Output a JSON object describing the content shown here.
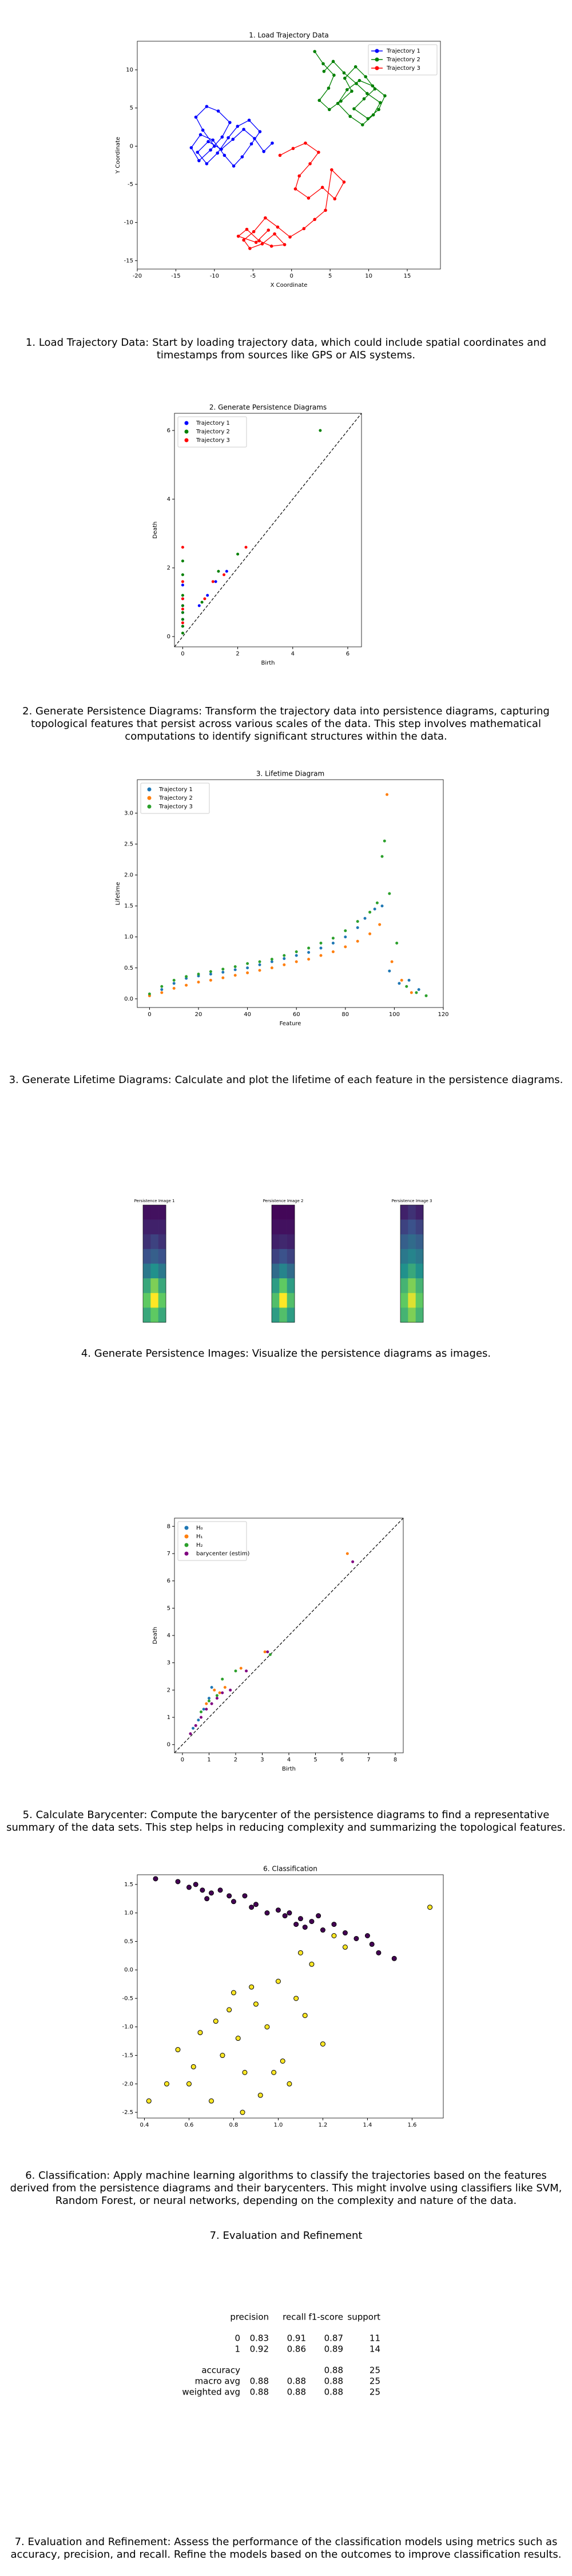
{
  "chart_data": [
    {
      "type": "line",
      "title": "1. Load Trajectory Data",
      "xlabel": "X Coordinate",
      "ylabel": "Y Coordinate",
      "xlim": [
        -20,
        19.3
      ],
      "ylim": [
        -16.1,
        13.75
      ],
      "xticks": [
        -20,
        -15,
        -10,
        -5,
        0,
        5,
        10,
        15
      ],
      "yticks": [
        -15,
        -10,
        -5,
        0,
        5,
        10
      ],
      "legend": "upper right",
      "series": [
        {
          "name": "Trajectory 1",
          "color": "#0000ff",
          "x": [
            -10,
            -11.5,
            -12.4,
            -11,
            -9.5,
            -8,
            -9,
            -10.5,
            -12,
            -13,
            -11.8,
            -10.2,
            -8.7,
            -7.5,
            -6.4,
            -5.2,
            -4.1,
            -5.5,
            -7,
            -8.2,
            -9.6,
            -11,
            -12.2,
            -10.8,
            -9.1,
            -7.6,
            -6.2,
            -4.8,
            -3.6,
            -2.5
          ],
          "values": [
            0,
            2.1,
            3.8,
            5.2,
            4.6,
            3.1,
            1.2,
            -0.5,
            -1.9,
            -0.2,
            1.5,
            0.8,
            -1.2,
            -2.6,
            -1.4,
            0.3,
            1.9,
            3.4,
            2.6,
            1.1,
            -0.9,
            -2.3,
            -0.8,
            0.6,
            -0.4,
            0.9,
            2.2,
            1,
            -0.7,
            0.4
          ]
        },
        {
          "name": "Trajectory 2",
          "color": "#008000",
          "x": [
            3,
            4.1,
            5.5,
            4.8,
            3.6,
            4.9,
            6.4,
            7.8,
            6.9,
            8.3,
            9.6,
            10.8,
            9.4,
            8.1,
            9.9,
            11.3,
            12.1,
            10.5,
            8.8,
            7.2,
            6,
            7.6,
            9.2,
            10.6,
            11.5,
            9.8,
            8.4,
            6.8,
            5.4,
            4.2
          ],
          "values": [
            12.4,
            10.8,
            9.3,
            7.6,
            6,
            4.8,
            5.9,
            7.2,
            8.9,
            10.4,
            9.1,
            7.5,
            6.2,
            4.9,
            3.6,
            4.8,
            6.6,
            7.9,
            8.6,
            7.4,
            5.6,
            3.9,
            2.8,
            4.1,
            5.7,
            6.9,
            8.2,
            9.6,
            11.1,
            9.8
          ]
        },
        {
          "name": "Trajectory 3",
          "color": "#ff0000",
          "x": [
            -1.5,
            0.2,
            1.8,
            3.5,
            2.4,
            1,
            0.5,
            2.2,
            4,
            5.6,
            6.8,
            5.2,
            4.4,
            3,
            1.6,
            -0.2,
            -1.8,
            -3.4,
            -4.9,
            -6.2,
            -5.4,
            -3.8,
            -2.2,
            -0.9,
            -2.6,
            -4.2,
            -5.8,
            -6.9,
            -4.6,
            -3
          ],
          "values": [
            -1.2,
            -0.3,
            0.4,
            -0.8,
            -2.3,
            -3.9,
            -5.6,
            -6.8,
            -5.4,
            -6.9,
            -4.7,
            -3.1,
            -8.4,
            -9.6,
            -10.8,
            -11.9,
            -10.6,
            -9.4,
            -11.2,
            -12.3,
            -13.4,
            -12.8,
            -11.5,
            -12.9,
            -13.1,
            -12.4,
            -10.9,
            -11.8,
            -12.6,
            -11
          ]
        }
      ]
    },
    {
      "type": "scatter",
      "title": "2. Generate Persistence Diagrams",
      "xlabel": "Birth",
      "ylabel": "Death",
      "xlim": [
        -0.3,
        6.5
      ],
      "ylim": [
        -0.3,
        6.5
      ],
      "xticks": [
        0,
        2,
        4,
        6
      ],
      "yticks": [
        0,
        2,
        4,
        6
      ],
      "legend": "upper left",
      "diagonal": true,
      "series": [
        {
          "name": "Trajectory 1",
          "color": "#0000ff",
          "x": [
            0,
            0,
            0,
            0,
            0,
            0,
            0.6,
            0.9,
            1.2,
            1.6
          ],
          "values": [
            0.3,
            0.5,
            0.7,
            0.9,
            1.1,
            1.5,
            0.9,
            1.2,
            1.6,
            1.9
          ]
        },
        {
          "name": "Trajectory 2",
          "color": "#008000",
          "x": [
            0,
            0,
            0,
            0,
            0,
            0,
            0,
            0,
            0.7,
            1.3,
            2,
            5
          ],
          "values": [
            0.1,
            0.3,
            0.5,
            0.7,
            0.9,
            1.2,
            1.8,
            2.2,
            1,
            1.9,
            2.4,
            6
          ]
        },
        {
          "name": "Trajectory 3",
          "color": "#ff0000",
          "x": [
            0,
            0,
            0,
            0,
            0,
            0.8,
            1.1,
            1.5,
            2.3
          ],
          "values": [
            0.4,
            0.8,
            1.1,
            1.6,
            2.6,
            1.1,
            1.6,
            1.8,
            2.6
          ]
        }
      ]
    },
    {
      "type": "scatter",
      "title": "3. Lifetime Diagram",
      "xlabel": "Feature",
      "ylabel": "Lifetime",
      "xlim": [
        -5,
        120
      ],
      "ylim": [
        -0.14,
        3.54
      ],
      "xticks": [
        0,
        20,
        40,
        60,
        80,
        100,
        120
      ],
      "yticks": [
        {
          "value": 0,
          "label": "0.0"
        },
        0.5,
        {
          "value": 1,
          "label": "1.0"
        },
        1.5,
        {
          "value": 2,
          "label": "2.0"
        },
        2.5,
        {
          "value": 3,
          "label": "3.0"
        }
      ],
      "legend": "upper left",
      "series": [
        {
          "name": "Trajectory 1",
          "color": "#1f77b4",
          "x": [
            0,
            5,
            10,
            15,
            20,
            25,
            30,
            35,
            40,
            45,
            50,
            55,
            60,
            65,
            70,
            75,
            80,
            85,
            88,
            92,
            95,
            98,
            102,
            106,
            110
          ],
          "values": [
            0.05,
            0.15,
            0.25,
            0.33,
            0.37,
            0.4,
            0.43,
            0.47,
            0.5,
            0.55,
            0.6,
            0.65,
            0.7,
            0.75,
            0.82,
            0.9,
            1,
            1.15,
            1.3,
            1.45,
            1.5,
            0.45,
            0.25,
            0.3,
            0.15
          ]
        },
        {
          "name": "Trajectory 2",
          "color": "#ff7f0e",
          "x": [
            0,
            5,
            10,
            15,
            20,
            25,
            30,
            35,
            40,
            45,
            50,
            55,
            60,
            65,
            70,
            75,
            80,
            85,
            90,
            94,
            97,
            99,
            103,
            107
          ],
          "values": [
            0.05,
            0.1,
            0.17,
            0.22,
            0.27,
            0.3,
            0.34,
            0.38,
            0.42,
            0.46,
            0.5,
            0.55,
            0.6,
            0.64,
            0.7,
            0.76,
            0.84,
            0.93,
            1.05,
            1.2,
            3.3,
            0.6,
            0.3,
            0.1
          ]
        },
        {
          "name": "Trajectory 3",
          "color": "#2ca02c",
          "x": [
            0,
            5,
            10,
            15,
            20,
            25,
            30,
            35,
            40,
            45,
            50,
            55,
            60,
            65,
            70,
            75,
            80,
            85,
            90,
            93,
            95,
            96,
            98,
            101,
            105,
            109,
            113
          ],
          "values": [
            0.08,
            0.2,
            0.3,
            0.36,
            0.4,
            0.44,
            0.48,
            0.52,
            0.57,
            0.6,
            0.64,
            0.7,
            0.76,
            0.82,
            0.9,
            0.98,
            1.1,
            1.25,
            1.4,
            1.55,
            2.3,
            2.55,
            1.7,
            0.9,
            0.2,
            0.1,
            0.05
          ]
        }
      ]
    },
    {
      "type": "heatmap",
      "colormap": "viridis",
      "images": [
        {
          "title": "Persistence Image 1",
          "values": [
            [
              0.05,
              0.05,
              0.05
            ],
            [
              0.1,
              0.1,
              0.1
            ],
            [
              0.15,
              0.2,
              0.15
            ],
            [
              0.25,
              0.3,
              0.25
            ],
            [
              0.4,
              0.5,
              0.4
            ],
            [
              0.6,
              0.8,
              0.6
            ],
            [
              0.75,
              1,
              0.75
            ],
            [
              0.6,
              0.75,
              0.6
            ]
          ]
        },
        {
          "title": "Persistence Image 2",
          "values": [
            [
              0.02,
              0.02,
              0.02
            ],
            [
              0.05,
              0.05,
              0.05
            ],
            [
              0.1,
              0.12,
              0.1
            ],
            [
              0.2,
              0.25,
              0.2
            ],
            [
              0.35,
              0.45,
              0.35
            ],
            [
              0.55,
              0.75,
              0.55
            ],
            [
              0.7,
              1,
              0.7
            ],
            [
              0.55,
              0.7,
              0.55
            ]
          ]
        },
        {
          "title": "Persistence Image 3",
          "values": [
            [
              0.1,
              0.15,
              0.1
            ],
            [
              0.2,
              0.25,
              0.2
            ],
            [
              0.3,
              0.35,
              0.3
            ],
            [
              0.4,
              0.45,
              0.4
            ],
            [
              0.5,
              0.6,
              0.5
            ],
            [
              0.65,
              0.8,
              0.65
            ],
            [
              0.75,
              0.95,
              0.75
            ],
            [
              0.65,
              0.8,
              0.65
            ]
          ]
        }
      ]
    },
    {
      "type": "scatter",
      "xlabel": "Birth",
      "ylabel": "Death",
      "xlim": [
        -0.3,
        8.3
      ],
      "ylim": [
        -0.3,
        8.3
      ],
      "xticks": [
        0,
        1,
        2,
        3,
        4,
        5,
        6,
        7,
        8
      ],
      "yticks": [
        0,
        1,
        2,
        3,
        4,
        5,
        6,
        7,
        8
      ],
      "legend": "upper left",
      "diagonal": true,
      "series": [
        {
          "name": "H₀",
          "color": "#1f77b4",
          "x": [
            0.4,
            0.6,
            0.8,
            1,
            1.1
          ],
          "values": [
            0.6,
            0.9,
            1.3,
            1.7,
            2.1
          ]
        },
        {
          "name": "H₁",
          "color": "#ff7f0e",
          "x": [
            0.9,
            1.2,
            1.4,
            1.6,
            2.2,
            3.1,
            6.2
          ],
          "values": [
            1.5,
            2,
            1.9,
            2.1,
            2.8,
            3.4,
            7
          ]
        },
        {
          "name": "H₂",
          "color": "#2ca02c",
          "x": [
            0.7,
            1,
            1.3,
            1.5,
            2,
            3.3
          ],
          "values": [
            1.2,
            1.6,
            1.8,
            2.4,
            2.7,
            3.3
          ]
        },
        {
          "name": "barycenter (estim)",
          "color": "#800080",
          "x": [
            0.3,
            0.5,
            0.7,
            0.9,
            1.1,
            1.3,
            1.5,
            1.8,
            2.4,
            3.2,
            6.4
          ],
          "values": [
            0.4,
            0.7,
            1,
            1.3,
            1.5,
            1.7,
            1.9,
            2,
            2.7,
            3.4,
            6.7
          ]
        }
      ]
    },
    {
      "type": "scatter",
      "title": "6. Classification",
      "edgecolor": "#000000",
      "xlim": [
        0.368,
        1.74
      ],
      "ylim": [
        -2.6,
        1.67
      ],
      "xticks": [
        0.4,
        0.6,
        0.8,
        {
          "value": 1,
          "label": "1.0"
        },
        1.2,
        1.4,
        1.6
      ],
      "yticks": [
        -2.5,
        {
          "value": -2,
          "label": "-2.0"
        },
        -1.5,
        {
          "value": -1,
          "label": "-1.0"
        },
        -0.5,
        {
          "value": 0,
          "label": "0.0"
        },
        0.5,
        {
          "value": 1,
          "label": "1.0"
        },
        1.5
      ],
      "series": [
        {
          "color": "#440154",
          "x": [
            0.45,
            0.55,
            0.6,
            0.63,
            0.66,
            0.7,
            0.74,
            0.78,
            0.8,
            0.85,
            0.9,
            0.95,
            1,
            1.03,
            1.05,
            1.1,
            1.12,
            1.15,
            1.2,
            1.25,
            1.3,
            1.35,
            1.4,
            1.42,
            1.45,
            1.52,
            0.68,
            0.88,
            1.08,
            1.18
          ],
          "values": [
            1.6,
            1.55,
            1.45,
            1.5,
            1.4,
            1.35,
            1.4,
            1.3,
            1.2,
            1.3,
            1.15,
            1,
            1.05,
            0.95,
            1,
            0.9,
            0.75,
            0.85,
            0.7,
            0.8,
            0.65,
            0.55,
            0.6,
            0.45,
            0.3,
            0.2,
            1.25,
            1.1,
            0.8,
            0.95
          ]
        },
        {
          "color": "#fde725",
          "x": [
            0.42,
            0.5,
            0.55,
            0.6,
            0.65,
            0.7,
            0.72,
            0.75,
            0.8,
            0.82,
            0.85,
            0.9,
            0.92,
            0.95,
            1,
            1.02,
            1.05,
            1.1,
            1.12,
            1.15,
            1.2,
            1.25,
            1.3,
            0.78,
            0.88,
            0.98,
            1.08,
            1.68,
            0.62,
            0.84
          ],
          "values": [
            -2.3,
            -2,
            -1.4,
            -2,
            -1.1,
            -2.3,
            -0.9,
            -1.5,
            -0.4,
            -1.2,
            -1.8,
            -0.6,
            -2.2,
            -1,
            -0.2,
            -1.6,
            -2,
            0.3,
            -0.8,
            0.1,
            -1.3,
            0.6,
            0.4,
            -0.7,
            -0.3,
            -1.8,
            -0.5,
            1.1,
            -1.7,
            -2.5
          ]
        }
      ]
    }
  ],
  "captions": [
    "1. Load Trajectory Data: Start by loading trajectory data, which could include spatial coordinates and timestamps from sources like GPS or AIS systems.",
    "2. Generate Persistence Diagrams: Transform the trajectory data into persistence diagrams, capturing topological features that persist across various scales of the data. This step involves mathematical computations to identify significant structures within the data.",
    "3. Generate Lifetime Diagrams: Calculate and plot the lifetime of each feature in the persistence diagrams.",
    "4. Generate Persistence Images: Visualize the persistence diagrams as images.",
    "5. Calculate Barycenter: Compute the barycenter of the persistence diagrams to find a representative summary of the data sets. This step helps in reducing complexity and summarizing the topological features.",
    "6. Classification: Apply machine learning algorithms to classify the trajectories based on the features derived from the persistence diagrams and their barycenters. This might involve using classifiers like SVM, Random Forest, or neural networks, depending on the complexity and nature of the data.",
    "7. Evaluation and Refinement: Assess the performance of the classification models using metrics such as accuracy, precision, and recall. Refine the models based on the outcomes to improve classification results."
  ],
  "report": {
    "title": "7. Evaluation and Refinement",
    "headers": [
      "precision",
      "recall",
      "f1-score",
      "support"
    ],
    "rows": [
      [
        "0",
        "0.83",
        "0.91",
        "0.87",
        "11"
      ],
      [
        "1",
        "0.92",
        "0.86",
        "0.89",
        "14"
      ],
      [
        "accuracy",
        null,
        null,
        "0.88",
        "25"
      ],
      [
        "macro avg",
        "0.88",
        "0.88",
        "0.88",
        "25"
      ],
      [
        "weighted avg",
        "0.88",
        "0.88",
        "0.88",
        "25"
      ]
    ]
  }
}
